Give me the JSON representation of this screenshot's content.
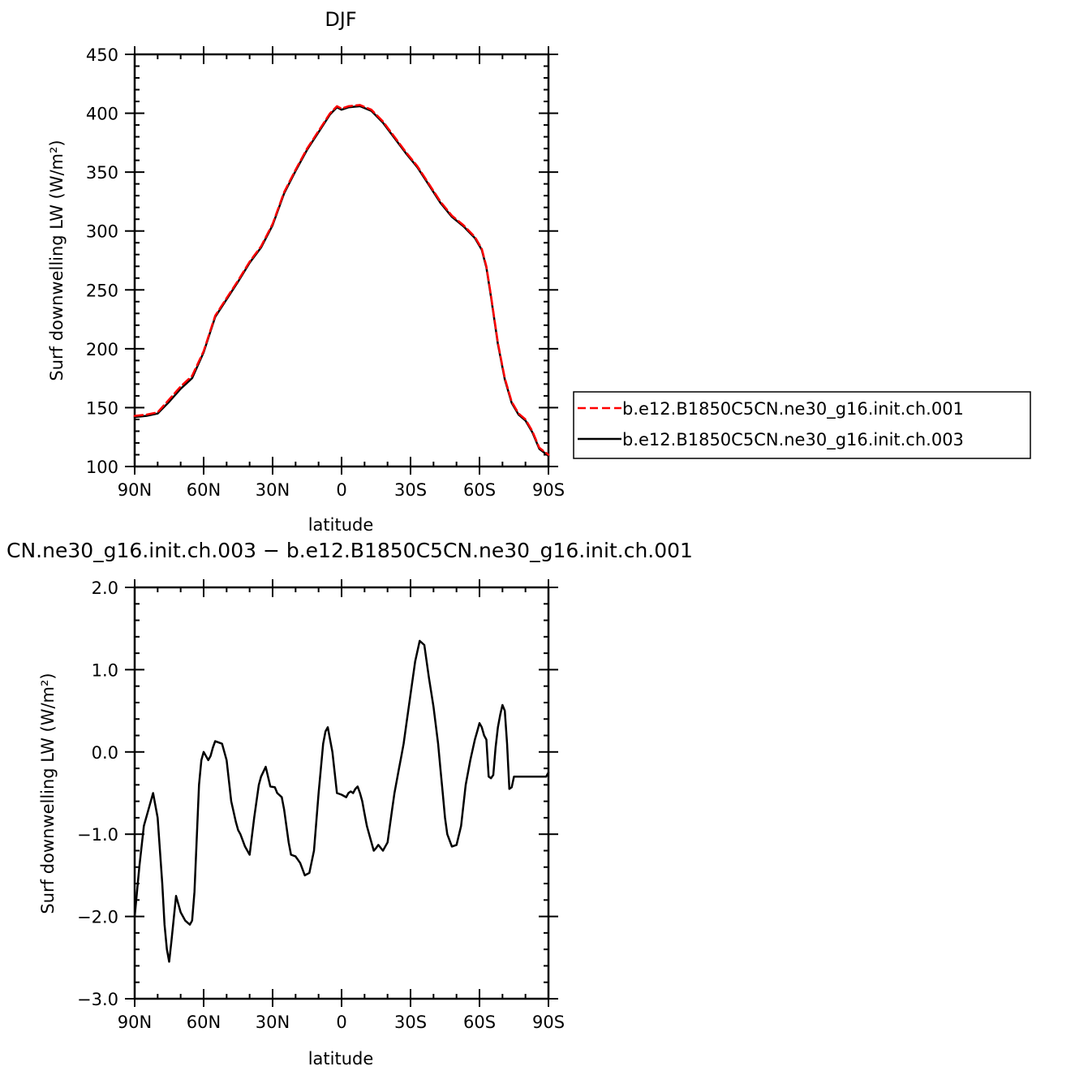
{
  "chart_data": [
    {
      "type": "line",
      "title": "DJF",
      "xlabel": "latitude",
      "ylabel": "Surf downwelling LW (W/m²)",
      "xlim": [
        90,
        -90
      ],
      "ylim": [
        100,
        450
      ],
      "xticks": [
        "90N",
        "60N",
        "30N",
        "0",
        "30S",
        "60S",
        "90S"
      ],
      "xtick_values": [
        90,
        60,
        30,
        0,
        -30,
        -60,
        -90
      ],
      "yticks": [
        "100",
        "150",
        "200",
        "250",
        "300",
        "350",
        "400",
        "450"
      ],
      "ytick_values": [
        100,
        150,
        200,
        250,
        300,
        350,
        400,
        450
      ],
      "legend": {
        "placement": "right"
      },
      "series": [
        {
          "name": "b.e12.B1850C5CN.ne30_g16.init.ch.001",
          "color": "#ff0000",
          "style": "dashed",
          "x": [
            90,
            85,
            80,
            75,
            70,
            65,
            60,
            55,
            50,
            45,
            40,
            35,
            30,
            25,
            20,
            15,
            10,
            5,
            2,
            0,
            -3,
            -8,
            -13,
            -18,
            -23,
            -28,
            -33,
            -38,
            -43,
            -48,
            -53,
            -58,
            -61,
            -63,
            -65,
            -68,
            -71,
            -74,
            -77,
            -80,
            -83,
            -86,
            -90
          ],
          "values": [
            143,
            144,
            146,
            157,
            168,
            177,
            198,
            228,
            243,
            258,
            274,
            287,
            306,
            333,
            352,
            370,
            385,
            400,
            406,
            404,
            406,
            407,
            403,
            393,
            380,
            367,
            355,
            340,
            325,
            313,
            305,
            295,
            285,
            270,
            245,
            205,
            175,
            155,
            145,
            140,
            130,
            116,
            110
          ]
        },
        {
          "name": "b.e12.B1850C5CN.ne30_g16.init.ch.003",
          "color": "#000000",
          "style": "solid",
          "x": [
            90,
            85,
            80,
            75,
            70,
            65,
            60,
            55,
            50,
            45,
            40,
            35,
            30,
            25,
            20,
            15,
            10,
            5,
            2,
            0,
            -3,
            -8,
            -13,
            -18,
            -23,
            -28,
            -33,
            -38,
            -43,
            -48,
            -53,
            -58,
            -61,
            -63,
            -65,
            -68,
            -71,
            -74,
            -77,
            -80,
            -83,
            -86,
            -90
          ],
          "values": [
            142,
            143,
            145,
            155,
            166,
            175,
            197,
            227,
            242,
            257,
            273,
            286,
            305,
            332,
            351,
            369,
            384,
            399,
            405,
            403,
            405,
            406,
            402,
            392,
            379,
            366,
            354,
            339,
            324,
            312,
            304,
            294,
            284,
            269,
            244,
            204,
            174,
            154,
            144,
            139,
            129,
            115,
            109
          ]
        }
      ]
    },
    {
      "type": "line",
      "title": "CN.ne30_g16.init.ch.003 − b.e12.B1850C5CN.ne30_g16.init.ch.001",
      "xlabel": "latitude",
      "ylabel": "Surf downwelling LW (W/m²)",
      "xlim": [
        90,
        -90
      ],
      "ylim": [
        -3.0,
        2.0
      ],
      "xticks": [
        "90N",
        "60N",
        "30N",
        "0",
        "30S",
        "60S",
        "90S"
      ],
      "xtick_values": [
        90,
        60,
        30,
        0,
        -30,
        -60,
        -90
      ],
      "yticks": [
        "−3.0",
        "−2.0",
        "−1.0",
        "0.0",
        "1.0",
        "2.0"
      ],
      "ytick_values": [
        -3,
        -2,
        -1,
        0,
        1,
        2
      ],
      "series": [
        {
          "color": "#000000",
          "style": "solid",
          "x": [
            90,
            88,
            86,
            84,
            82,
            80,
            78,
            77,
            76,
            75,
            74,
            72,
            70,
            68,
            66,
            65,
            64,
            62,
            61,
            60,
            58,
            57,
            56,
            55,
            54,
            52,
            50,
            48,
            46,
            45,
            44,
            42,
            40,
            38,
            36,
            35,
            33,
            31,
            29,
            28,
            26,
            25,
            24,
            23,
            22,
            20,
            18,
            16,
            14,
            12,
            10,
            9,
            8,
            7,
            6,
            4,
            2,
            0,
            -2,
            -3,
            -4,
            -5,
            -6,
            -7,
            -8,
            -9,
            -10,
            -11,
            -12,
            -13,
            -14,
            -15,
            -16,
            -18,
            -20,
            -21,
            -22,
            -23,
            -24,
            -25,
            -26,
            -27,
            -28,
            -30,
            -32,
            -34,
            -36,
            -38,
            -40,
            -42,
            -43,
            -44,
            -45,
            -46,
            -48,
            -50,
            -52,
            -54,
            -56,
            -58,
            -59,
            -60,
            -61,
            -62,
            -63,
            -64,
            -65,
            -66,
            -67,
            -68,
            -69,
            -70,
            -71,
            -72,
            -73,
            -74,
            -75,
            -76,
            -77,
            -78,
            -79,
            -80,
            -81,
            -82,
            -83,
            -84,
            -85,
            -86,
            -87,
            -88,
            -89,
            -90
          ],
          "values": [
            -2.0,
            -1.4,
            -0.9,
            -0.7,
            -0.5,
            -0.8,
            -1.6,
            -2.1,
            -2.4,
            -2.55,
            -2.3,
            -1.75,
            -1.95,
            -2.05,
            -2.1,
            -2.05,
            -1.7,
            -0.4,
            -0.1,
            0.0,
            -0.1,
            -0.05,
            0.05,
            0.13,
            0.12,
            0.1,
            -0.1,
            -0.6,
            -0.85,
            -0.95,
            -1.0,
            -1.15,
            -1.25,
            -0.8,
            -0.4,
            -0.3,
            -0.18,
            -0.42,
            -0.43,
            -0.5,
            -0.55,
            -0.7,
            -0.9,
            -1.1,
            -1.25,
            -1.27,
            -1.35,
            -1.5,
            -1.47,
            -1.2,
            -0.5,
            -0.2,
            0.1,
            0.25,
            0.3,
            0.0,
            -0.5,
            -0.52,
            -0.55,
            -0.5,
            -0.48,
            -0.5,
            -0.45,
            -0.42,
            -0.5,
            -0.6,
            -0.75,
            -0.9,
            -1.0,
            -1.1,
            -1.2,
            -1.17,
            -1.13,
            -1.2,
            -1.1,
            -0.9,
            -0.7,
            -0.5,
            -0.35,
            -0.2,
            -0.05,
            0.1,
            0.3,
            0.7,
            1.1,
            1.35,
            1.3,
            0.9,
            0.55,
            0.1,
            -0.2,
            -0.5,
            -0.8,
            -1.0,
            -1.15,
            -1.13,
            -0.9,
            -0.4,
            -0.1,
            0.15,
            0.25,
            0.35,
            0.3,
            0.2,
            0.15,
            -0.3,
            -0.32,
            -0.28,
            0.05,
            0.3,
            0.45,
            0.57,
            0.5,
            0.1,
            -0.45,
            -0.43,
            -0.3,
            -0.3,
            -0.3,
            -0.3,
            -0.3,
            -0.3,
            -0.3,
            -0.3,
            -0.3,
            -0.3,
            -0.3,
            -0.3,
            -0.3,
            -0.3,
            -0.3,
            -0.25
          ]
        }
      ]
    }
  ]
}
